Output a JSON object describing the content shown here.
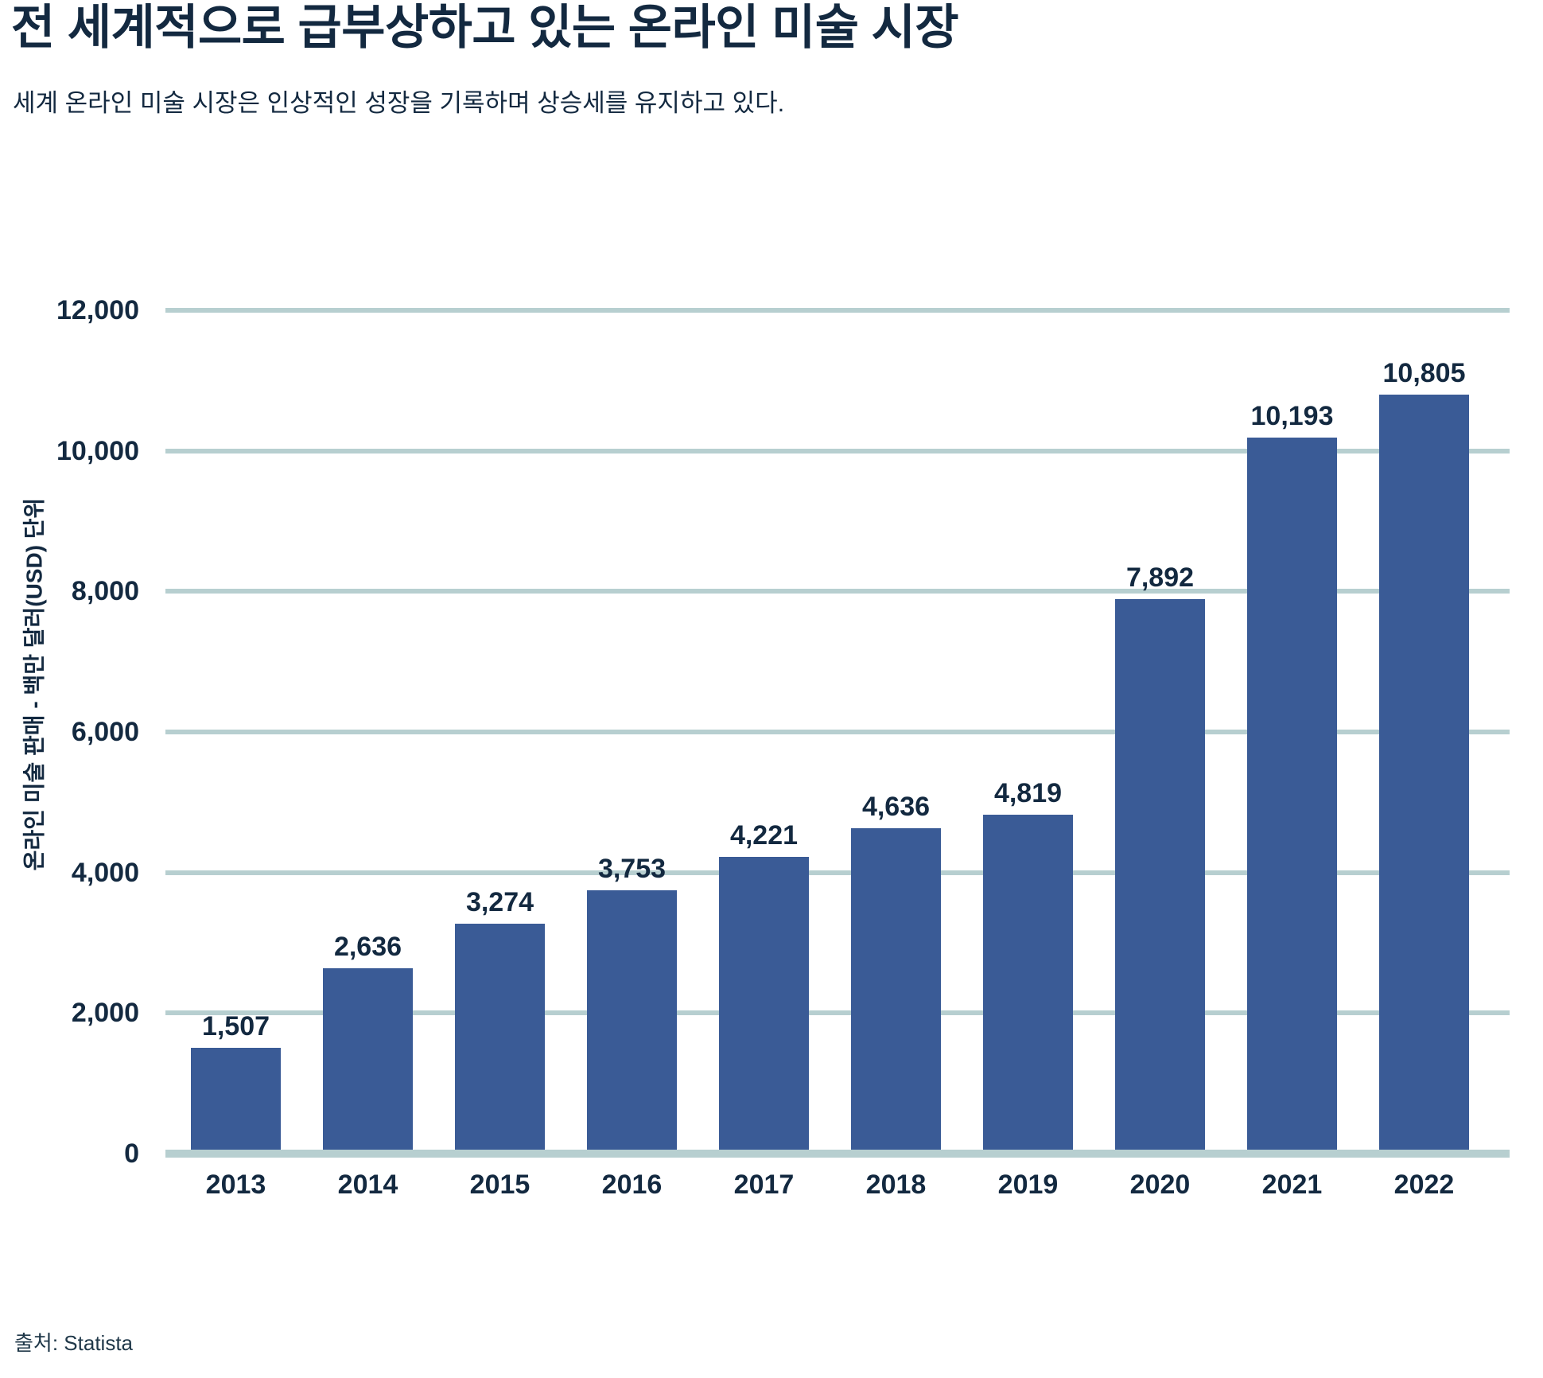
{
  "header": {
    "title": "전 세계적으로 급부상하고 있는 온라인 미술 시장",
    "subtitle": "세계 온라인 미술 시장은 인상적인 성장을 기록하며 상승세를 유지하고 있다."
  },
  "chart_data": {
    "type": "bar",
    "title": "전 세계적으로 급부상하고 있는 온라인 미술 시장",
    "subtitle": "세계 온라인 미술 시장은 인상적인 성장을 기록하며 상승세를 유지하고 있다.",
    "categories": [
      "2013",
      "2014",
      "2015",
      "2016",
      "2017",
      "2018",
      "2019",
      "2020",
      "2021",
      "2022"
    ],
    "values": [
      1507,
      2636,
      3274,
      3753,
      4221,
      4636,
      4819,
      7892,
      10193,
      10805
    ],
    "value_labels": [
      "1,507",
      "2,636",
      "3,274",
      "3,753",
      "4,221",
      "4,636",
      "4,819",
      "7,892",
      "10,193",
      "10,805"
    ],
    "xlabel": "",
    "ylabel": "온라인 미술 판매 - 백만 달러(USD) 단위",
    "ylim": [
      0,
      12000
    ],
    "yticks": [
      0,
      2000,
      4000,
      6000,
      8000,
      10000,
      12000
    ],
    "ytick_labels": [
      "0",
      "2,000",
      "4,000",
      "6,000",
      "8,000",
      "10,000",
      "12,000"
    ],
    "grid": true,
    "legend": "none",
    "colors": {
      "bar": "#3a5b96",
      "gridline": "#b7cfd0",
      "baseline": "#b7cfd0",
      "text": "#132940"
    }
  },
  "footer": {
    "source": "출처: Statista"
  }
}
